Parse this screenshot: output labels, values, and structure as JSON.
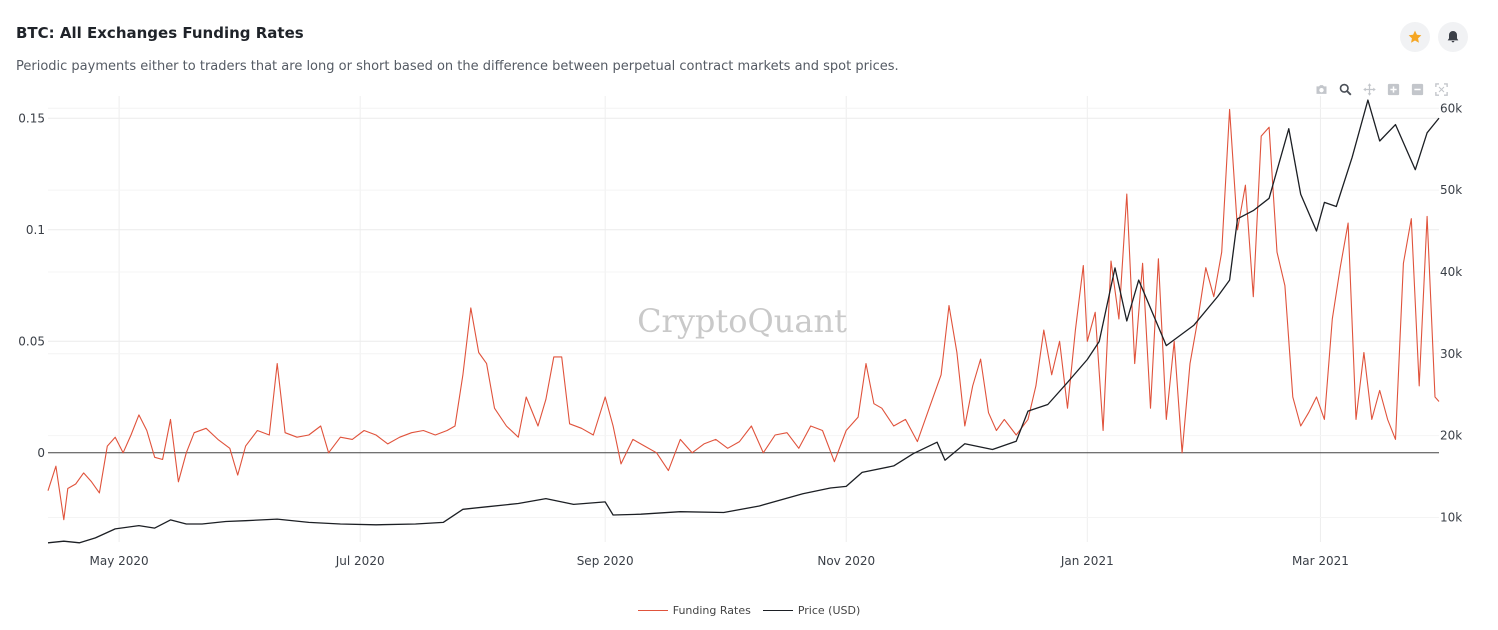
{
  "header": {
    "title": "BTC: All Exchanges Funding Rates",
    "subtitle": "Periodic payments either to traders that are long or short based on the difference between perpetual contract markets and spot prices."
  },
  "toolbar": {
    "favorite_icon": "star-icon",
    "alert_icon": "bell-icon",
    "modebar_icons": [
      "camera-icon",
      "zoom-icon",
      "pan-icon",
      "zoom-in-icon",
      "zoom-out-icon",
      "autoscale-icon"
    ]
  },
  "watermark": "CryptoQuant",
  "colors": {
    "funding": "#e0533c",
    "price": "#1c1f24",
    "accent_star": "#f5a623",
    "grid": "#ececec"
  },
  "chart_data": {
    "type": "line",
    "x_tick_labels": [
      "May 2020",
      "Jul 2020",
      "Sep 2020",
      "Nov 2020",
      "Jan 2021",
      "Mar 2021"
    ],
    "x_tick_dates": [
      "2020-05-01",
      "2020-07-01",
      "2020-09-01",
      "2020-11-01",
      "2021-01-01",
      "2021-03-01"
    ],
    "x_range": [
      "2020-04-13",
      "2021-03-31"
    ],
    "y_left": {
      "ticks": [
        "0",
        "0.05",
        "0.1",
        "0.15"
      ],
      "tick_values": [
        0,
        0.05,
        0.1,
        0.15
      ],
      "range": [
        -0.04,
        0.16
      ]
    },
    "y_right": {
      "ticks": [
        "10k",
        "20k",
        "30k",
        "40k",
        "50k",
        "60k"
      ],
      "tick_values": [
        10000,
        20000,
        30000,
        40000,
        50000,
        60000
      ],
      "range": [
        7000,
        61500
      ]
    },
    "grid": true,
    "legend_position": "bottom-center",
    "series": [
      {
        "name": "Funding Rates",
        "axis": "left",
        "color": "#e0533c",
        "points": [
          [
            "2020-04-13",
            -0.017
          ],
          [
            "2020-04-15",
            -0.006
          ],
          [
            "2020-04-17",
            -0.03
          ],
          [
            "2020-04-18",
            -0.016
          ],
          [
            "2020-04-20",
            -0.014
          ],
          [
            "2020-04-22",
            -0.009
          ],
          [
            "2020-04-24",
            -0.013
          ],
          [
            "2020-04-26",
            -0.018
          ],
          [
            "2020-04-28",
            0.003
          ],
          [
            "2020-04-30",
            0.007
          ],
          [
            "2020-05-02",
            0.0
          ],
          [
            "2020-05-04",
            0.008
          ],
          [
            "2020-05-06",
            0.017
          ],
          [
            "2020-05-08",
            0.01
          ],
          [
            "2020-05-10",
            -0.002
          ],
          [
            "2020-05-12",
            -0.003
          ],
          [
            "2020-05-14",
            0.015
          ],
          [
            "2020-05-16",
            -0.013
          ],
          [
            "2020-05-18",
            0.0
          ],
          [
            "2020-05-20",
            0.009
          ],
          [
            "2020-05-23",
            0.011
          ],
          [
            "2020-05-26",
            0.006
          ],
          [
            "2020-05-29",
            0.002
          ],
          [
            "2020-05-31",
            -0.01
          ],
          [
            "2020-06-02",
            0.003
          ],
          [
            "2020-06-05",
            0.01
          ],
          [
            "2020-06-08",
            0.008
          ],
          [
            "2020-06-10",
            0.04
          ],
          [
            "2020-06-12",
            0.009
          ],
          [
            "2020-06-15",
            0.007
          ],
          [
            "2020-06-18",
            0.008
          ],
          [
            "2020-06-21",
            0.012
          ],
          [
            "2020-06-23",
            0.0
          ],
          [
            "2020-06-26",
            0.007
          ],
          [
            "2020-06-29",
            0.006
          ],
          [
            "2020-07-02",
            0.01
          ],
          [
            "2020-07-05",
            0.008
          ],
          [
            "2020-07-08",
            0.004
          ],
          [
            "2020-07-11",
            0.007
          ],
          [
            "2020-07-14",
            0.009
          ],
          [
            "2020-07-17",
            0.01
          ],
          [
            "2020-07-20",
            0.008
          ],
          [
            "2020-07-23",
            0.01
          ],
          [
            "2020-07-25",
            0.012
          ],
          [
            "2020-07-27",
            0.035
          ],
          [
            "2020-07-29",
            0.065
          ],
          [
            "2020-07-31",
            0.045
          ],
          [
            "2020-08-02",
            0.04
          ],
          [
            "2020-08-04",
            0.02
          ],
          [
            "2020-08-07",
            0.012
          ],
          [
            "2020-08-10",
            0.007
          ],
          [
            "2020-08-12",
            0.025
          ],
          [
            "2020-08-15",
            0.012
          ],
          [
            "2020-08-17",
            0.024
          ],
          [
            "2020-08-19",
            0.043
          ],
          [
            "2020-08-21",
            0.043
          ],
          [
            "2020-08-23",
            0.013
          ],
          [
            "2020-08-26",
            0.011
          ],
          [
            "2020-08-29",
            0.008
          ],
          [
            "2020-09-01",
            0.025
          ],
          [
            "2020-09-03",
            0.012
          ],
          [
            "2020-09-05",
            -0.005
          ],
          [
            "2020-09-08",
            0.006
          ],
          [
            "2020-09-11",
            0.003
          ],
          [
            "2020-09-14",
            0.0
          ],
          [
            "2020-09-17",
            -0.008
          ],
          [
            "2020-09-20",
            0.006
          ],
          [
            "2020-09-23",
            0.0
          ],
          [
            "2020-09-26",
            0.004
          ],
          [
            "2020-09-29",
            0.006
          ],
          [
            "2020-10-02",
            0.002
          ],
          [
            "2020-10-05",
            0.005
          ],
          [
            "2020-10-08",
            0.012
          ],
          [
            "2020-10-11",
            0.0
          ],
          [
            "2020-10-14",
            0.008
          ],
          [
            "2020-10-17",
            0.009
          ],
          [
            "2020-10-20",
            0.002
          ],
          [
            "2020-10-23",
            0.012
          ],
          [
            "2020-10-26",
            0.01
          ],
          [
            "2020-10-29",
            -0.004
          ],
          [
            "2020-11-01",
            0.01
          ],
          [
            "2020-11-04",
            0.016
          ],
          [
            "2020-11-06",
            0.04
          ],
          [
            "2020-11-08",
            0.022
          ],
          [
            "2020-11-10",
            0.02
          ],
          [
            "2020-11-13",
            0.012
          ],
          [
            "2020-11-16",
            0.015
          ],
          [
            "2020-11-19",
            0.005
          ],
          [
            "2020-11-22",
            0.02
          ],
          [
            "2020-11-25",
            0.035
          ],
          [
            "2020-11-27",
            0.066
          ],
          [
            "2020-11-29",
            0.045
          ],
          [
            "2020-12-01",
            0.012
          ],
          [
            "2020-12-03",
            0.03
          ],
          [
            "2020-12-05",
            0.042
          ],
          [
            "2020-12-07",
            0.018
          ],
          [
            "2020-12-09",
            0.01
          ],
          [
            "2020-12-11",
            0.015
          ],
          [
            "2020-12-14",
            0.008
          ],
          [
            "2020-12-17",
            0.015
          ],
          [
            "2020-12-19",
            0.03
          ],
          [
            "2020-12-21",
            0.055
          ],
          [
            "2020-12-23",
            0.035
          ],
          [
            "2020-12-25",
            0.05
          ],
          [
            "2020-12-27",
            0.02
          ],
          [
            "2020-12-29",
            0.055
          ],
          [
            "2020-12-31",
            0.084
          ],
          [
            "2021-01-01",
            0.05
          ],
          [
            "2021-01-03",
            0.063
          ],
          [
            "2021-01-05",
            0.01
          ],
          [
            "2021-01-07",
            0.086
          ],
          [
            "2021-01-09",
            0.06
          ],
          [
            "2021-01-11",
            0.116
          ],
          [
            "2021-01-13",
            0.04
          ],
          [
            "2021-01-15",
            0.085
          ],
          [
            "2021-01-17",
            0.02
          ],
          [
            "2021-01-19",
            0.087
          ],
          [
            "2021-01-21",
            0.015
          ],
          [
            "2021-01-23",
            0.05
          ],
          [
            "2021-01-25",
            0.0
          ],
          [
            "2021-01-27",
            0.04
          ],
          [
            "2021-01-29",
            0.06
          ],
          [
            "2021-01-31",
            0.083
          ],
          [
            "2021-02-02",
            0.07
          ],
          [
            "2021-02-04",
            0.09
          ],
          [
            "2021-02-06",
            0.154
          ],
          [
            "2021-02-08",
            0.1
          ],
          [
            "2021-02-10",
            0.12
          ],
          [
            "2021-02-12",
            0.07
          ],
          [
            "2021-02-14",
            0.142
          ],
          [
            "2021-02-16",
            0.146
          ],
          [
            "2021-02-18",
            0.09
          ],
          [
            "2021-02-20",
            0.075
          ],
          [
            "2021-02-22",
            0.025
          ],
          [
            "2021-02-24",
            0.012
          ],
          [
            "2021-02-26",
            0.018
          ],
          [
            "2021-02-28",
            0.025
          ],
          [
            "2021-03-02",
            0.015
          ],
          [
            "2021-03-04",
            0.06
          ],
          [
            "2021-03-06",
            0.083
          ],
          [
            "2021-03-08",
            0.103
          ],
          [
            "2021-03-10",
            0.015
          ],
          [
            "2021-03-12",
            0.045
          ],
          [
            "2021-03-14",
            0.015
          ],
          [
            "2021-03-16",
            0.028
          ],
          [
            "2021-03-18",
            0.015
          ],
          [
            "2021-03-20",
            0.006
          ],
          [
            "2021-03-22",
            0.085
          ],
          [
            "2021-03-24",
            0.105
          ],
          [
            "2021-03-26",
            0.03
          ],
          [
            "2021-03-28",
            0.106
          ],
          [
            "2021-03-30",
            0.025
          ],
          [
            "2021-03-31",
            0.023
          ]
        ]
      },
      {
        "name": "Price (USD)",
        "axis": "right",
        "color": "#1c1f24",
        "points": [
          [
            "2020-04-13",
            6900
          ],
          [
            "2020-04-17",
            7100
          ],
          [
            "2020-04-21",
            6900
          ],
          [
            "2020-04-25",
            7500
          ],
          [
            "2020-04-30",
            8600
          ],
          [
            "2020-05-06",
            9000
          ],
          [
            "2020-05-10",
            8700
          ],
          [
            "2020-05-14",
            9700
          ],
          [
            "2020-05-18",
            9200
          ],
          [
            "2020-05-22",
            9200
          ],
          [
            "2020-05-28",
            9500
          ],
          [
            "2020-06-02",
            9600
          ],
          [
            "2020-06-10",
            9800
          ],
          [
            "2020-06-18",
            9400
          ],
          [
            "2020-06-26",
            9200
          ],
          [
            "2020-07-05",
            9100
          ],
          [
            "2020-07-15",
            9200
          ],
          [
            "2020-07-22",
            9400
          ],
          [
            "2020-07-27",
            11000
          ],
          [
            "2020-08-02",
            11300
          ],
          [
            "2020-08-10",
            11700
          ],
          [
            "2020-08-17",
            12300
          ],
          [
            "2020-08-24",
            11600
          ],
          [
            "2020-09-01",
            11900
          ],
          [
            "2020-09-03",
            10300
          ],
          [
            "2020-09-10",
            10400
          ],
          [
            "2020-09-20",
            10700
          ],
          [
            "2020-10-01",
            10600
          ],
          [
            "2020-10-10",
            11400
          ],
          [
            "2020-10-21",
            12900
          ],
          [
            "2020-10-28",
            13600
          ],
          [
            "2020-11-01",
            13800
          ],
          [
            "2020-11-05",
            15500
          ],
          [
            "2020-11-13",
            16300
          ],
          [
            "2020-11-18",
            17800
          ],
          [
            "2020-11-24",
            19200
          ],
          [
            "2020-11-26",
            17000
          ],
          [
            "2020-12-01",
            19000
          ],
          [
            "2020-12-08",
            18300
          ],
          [
            "2020-12-14",
            19300
          ],
          [
            "2020-12-17",
            23000
          ],
          [
            "2020-12-22",
            23800
          ],
          [
            "2020-12-27",
            26500
          ],
          [
            "2021-01-01",
            29300
          ],
          [
            "2021-01-04",
            31500
          ],
          [
            "2021-01-08",
            40500
          ],
          [
            "2021-01-11",
            34000
          ],
          [
            "2021-01-14",
            39000
          ],
          [
            "2021-01-21",
            31000
          ],
          [
            "2021-01-28",
            33500
          ],
          [
            "2021-02-03",
            37000
          ],
          [
            "2021-02-06",
            39000
          ],
          [
            "2021-02-08",
            46500
          ],
          [
            "2021-02-12",
            47500
          ],
          [
            "2021-02-16",
            49000
          ],
          [
            "2021-02-21",
            57500
          ],
          [
            "2021-02-24",
            49500
          ],
          [
            "2021-02-28",
            45000
          ],
          [
            "2021-03-02",
            48500
          ],
          [
            "2021-03-05",
            48000
          ],
          [
            "2021-03-09",
            54000
          ],
          [
            "2021-03-13",
            61000
          ],
          [
            "2021-03-16",
            56000
          ],
          [
            "2021-03-20",
            58000
          ],
          [
            "2021-03-25",
            52500
          ],
          [
            "2021-03-28",
            57000
          ],
          [
            "2021-03-31",
            58800
          ]
        ]
      }
    ]
  },
  "legend": {
    "funding_label": "Funding Rates",
    "price_label": "Price (USD)"
  }
}
